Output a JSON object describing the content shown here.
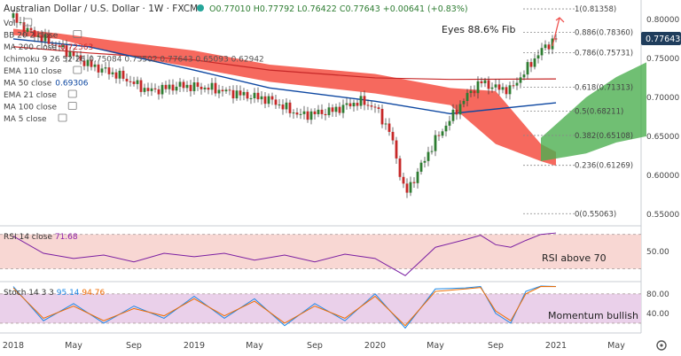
{
  "header": {
    "title": "Australian Dollar / U.S. Dollar · 1W · FXCM",
    "ohlc": "O0.77010 H0.77792 L0.76422 C0.77643 +0.00641 (+0.83%)"
  },
  "indicators": [
    {
      "label": "Vol",
      "value": "",
      "color": "#555555"
    },
    {
      "label": "BB 20 2 close",
      "value": "",
      "color": "#555555"
    },
    {
      "label": "MA 200 close",
      "value": "0.72363",
      "color": "#c62828"
    },
    {
      "label": "Ichimoku 9 26 52 26",
      "value": "0.75084 0.73502 0.77643 0.65093 0.62942",
      "color": "#555555"
    },
    {
      "label": "EMA 110 close",
      "value": "",
      "color": "#555555"
    },
    {
      "label": "MA 50 close",
      "value": "0.69306",
      "color": "#0d47a1"
    },
    {
      "label": "EMA 21 close",
      "value": "",
      "color": "#555555"
    },
    {
      "label": "MA 100 close",
      "value": "",
      "color": "#555555"
    },
    {
      "label": "MA 5 close",
      "value": "",
      "color": "#555555"
    }
  ],
  "annotations": {
    "eyes_fib": "Eyes 88.6% Fib",
    "rsi_note": "RSI above 70",
    "momentum_note": "Momentum bullish"
  },
  "current_price": "0.77643",
  "rsi_label": {
    "name": "RSI 14 close",
    "value": "71.68"
  },
  "stoch_label": {
    "name": "Stoch 14 3 3",
    "k": "95.14",
    "d": "94.76"
  },
  "x_axis": [
    "2018",
    "May",
    "Sep",
    "2019",
    "May",
    "Sep",
    "2020",
    "May",
    "Sep",
    "2021",
    "May"
  ],
  "colors": {
    "up": "#26a69a",
    "down": "#ef5350",
    "candle_body": "#2e7d32",
    "ma200": "#c62828",
    "ma50": "#0d47a1",
    "kumo_bear": "#f44336",
    "kumo_bull": "#4caf50",
    "rsi_band": "#f8d7d3",
    "stoch_band": "#ead0ea",
    "current_price_bg": "#1f3d5c"
  },
  "chart_data": [
    {
      "type": "candlestick",
      "title": "Australian Dollar / U.S. Dollar · 1W · FXCM",
      "y_axis_ticks": [
        "0.80000",
        "0.75000",
        "0.70000",
        "0.65000",
        "0.60000",
        "0.55000"
      ],
      "ylim": [
        0.535,
        0.825
      ],
      "close_path": [
        {
          "x": "2018-01",
          "y": 0.802
        },
        {
          "x": "2018-02",
          "y": 0.785
        },
        {
          "x": "2018-04",
          "y": 0.765
        },
        {
          "x": "2018-06",
          "y": 0.742
        },
        {
          "x": "2018-08",
          "y": 0.728
        },
        {
          "x": "2018-10",
          "y": 0.708
        },
        {
          "x": "2018-12",
          "y": 0.715
        },
        {
          "x": "2019-02",
          "y": 0.712
        },
        {
          "x": "2019-04",
          "y": 0.704
        },
        {
          "x": "2019-06",
          "y": 0.697
        },
        {
          "x": "2019-08",
          "y": 0.677
        },
        {
          "x": "2019-10",
          "y": 0.682
        },
        {
          "x": "2019-12",
          "y": 0.695
        },
        {
          "x": "2020-01",
          "y": 0.687
        },
        {
          "x": "2020-02",
          "y": 0.655
        },
        {
          "x": "2020-03",
          "y": 0.575
        },
        {
          "x": "2020-05",
          "y": 0.645
        },
        {
          "x": "2020-07",
          "y": 0.7
        },
        {
          "x": "2020-08",
          "y": 0.72
        },
        {
          "x": "2020-09",
          "y": 0.712
        },
        {
          "x": "2020-10",
          "y": 0.71
        },
        {
          "x": "2020-11",
          "y": 0.735
        },
        {
          "x": "2020-12",
          "y": 0.76
        },
        {
          "x": "2021-01",
          "y": 0.776
        }
      ],
      "fib_levels": [
        {
          "label": "1(0.81358)",
          "value": 0.81358
        },
        {
          "label": "0.886(0.78360)",
          "value": 0.7836
        },
        {
          "label": "0.786(0.75731)",
          "value": 0.75731
        },
        {
          "label": "0.618(0.71313)",
          "value": 0.71313
        },
        {
          "label": "0.5(0.68211)",
          "value": 0.68211
        },
        {
          "label": "0.382(0.65108)",
          "value": 0.65108
        },
        {
          "label": "0.236(0.61269)",
          "value": 0.61269
        },
        {
          "label": "0(0.55063)",
          "value": 0.55063
        }
      ],
      "ma200": [
        {
          "x": "2018-01",
          "y": 0.765
        },
        {
          "x": "2018-06",
          "y": 0.757
        },
        {
          "x": "2019-01",
          "y": 0.748
        },
        {
          "x": "2019-06",
          "y": 0.735
        },
        {
          "x": "2020-01",
          "y": 0.725
        },
        {
          "x": "2020-06",
          "y": 0.723
        },
        {
          "x": "2021-01",
          "y": 0.7236
        }
      ],
      "ma50": [
        {
          "x": "2018-01",
          "y": 0.775
        },
        {
          "x": "2018-06",
          "y": 0.765
        },
        {
          "x": "2019-01",
          "y": 0.735
        },
        {
          "x": "2019-06",
          "y": 0.712
        },
        {
          "x": "2020-01",
          "y": 0.695
        },
        {
          "x": "2020-06",
          "y": 0.679
        },
        {
          "x": "2021-01",
          "y": 0.693
        }
      ]
    },
    {
      "type": "line",
      "title": "RSI 14 close",
      "y_axis_ticks": [
        "50.00"
      ],
      "band": [
        30,
        70
      ],
      "ylim": [
        15,
        80
      ],
      "values": [
        {
          "x": "2018-01",
          "y": 68
        },
        {
          "x": "2018-03",
          "y": 48
        },
        {
          "x": "2018-05",
          "y": 42
        },
        {
          "x": "2018-07",
          "y": 46
        },
        {
          "x": "2018-09",
          "y": 38
        },
        {
          "x": "2018-11",
          "y": 48
        },
        {
          "x": "2019-01",
          "y": 44
        },
        {
          "x": "2019-03",
          "y": 48
        },
        {
          "x": "2019-05",
          "y": 40
        },
        {
          "x": "2019-07",
          "y": 46
        },
        {
          "x": "2019-09",
          "y": 38
        },
        {
          "x": "2019-11",
          "y": 47
        },
        {
          "x": "2020-01",
          "y": 42
        },
        {
          "x": "2020-03",
          "y": 22
        },
        {
          "x": "2020-05",
          "y": 55
        },
        {
          "x": "2020-07",
          "y": 64
        },
        {
          "x": "2020-08",
          "y": 69
        },
        {
          "x": "2020-09",
          "y": 58
        },
        {
          "x": "2020-10",
          "y": 55
        },
        {
          "x": "2020-11",
          "y": 63
        },
        {
          "x": "2020-12",
          "y": 70
        },
        {
          "x": "2021-01",
          "y": 71.68
        }
      ]
    },
    {
      "type": "line",
      "title": "Stoch 14 3 3",
      "y_axis_ticks": [
        "80.00",
        "40.00"
      ],
      "band": [
        20,
        80
      ],
      "ylim": [
        0,
        105
      ],
      "series": [
        {
          "name": "%K",
          "values": [
            {
              "x": "2018-01",
              "y": 95
            },
            {
              "x": "2018-03",
              "y": 25
            },
            {
              "x": "2018-05",
              "y": 60
            },
            {
              "x": "2018-07",
              "y": 20
            },
            {
              "x": "2018-09",
              "y": 55
            },
            {
              "x": "2018-11",
              "y": 30
            },
            {
              "x": "2019-01",
              "y": 75
            },
            {
              "x": "2019-03",
              "y": 30
            },
            {
              "x": "2019-05",
              "y": 70
            },
            {
              "x": "2019-07",
              "y": 15
            },
            {
              "x": "2019-09",
              "y": 60
            },
            {
              "x": "2019-11",
              "y": 25
            },
            {
              "x": "2020-01",
              "y": 80
            },
            {
              "x": "2020-03",
              "y": 10
            },
            {
              "x": "2020-05",
              "y": 90
            },
            {
              "x": "2020-07",
              "y": 92
            },
            {
              "x": "2020-08",
              "y": 95
            },
            {
              "x": "2020-09",
              "y": 40
            },
            {
              "x": "2020-10",
              "y": 20
            },
            {
              "x": "2020-11",
              "y": 85
            },
            {
              "x": "2020-12",
              "y": 96
            },
            {
              "x": "2021-01",
              "y": 95.14
            }
          ]
        },
        {
          "name": "%D",
          "values": [
            {
              "x": "2018-01",
              "y": 92
            },
            {
              "x": "2018-03",
              "y": 30
            },
            {
              "x": "2018-05",
              "y": 55
            },
            {
              "x": "2018-07",
              "y": 25
            },
            {
              "x": "2018-09",
              "y": 50
            },
            {
              "x": "2018-11",
              "y": 35
            },
            {
              "x": "2019-01",
              "y": 70
            },
            {
              "x": "2019-03",
              "y": 35
            },
            {
              "x": "2019-05",
              "y": 65
            },
            {
              "x": "2019-07",
              "y": 20
            },
            {
              "x": "2019-09",
              "y": 55
            },
            {
              "x": "2019-11",
              "y": 30
            },
            {
              "x": "2020-01",
              "y": 75
            },
            {
              "x": "2020-03",
              "y": 15
            },
            {
              "x": "2020-05",
              "y": 85
            },
            {
              "x": "2020-07",
              "y": 90
            },
            {
              "x": "2020-08",
              "y": 93
            },
            {
              "x": "2020-09",
              "y": 45
            },
            {
              "x": "2020-10",
              "y": 25
            },
            {
              "x": "2020-11",
              "y": 80
            },
            {
              "x": "2020-12",
              "y": 95
            },
            {
              "x": "2021-01",
              "y": 94.76
            }
          ]
        }
      ]
    }
  ]
}
